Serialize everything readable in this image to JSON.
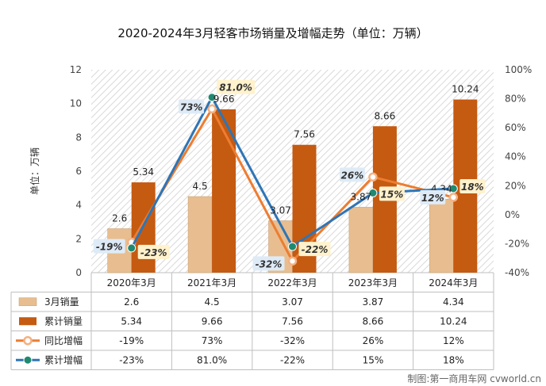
{
  "chart_data": {
    "type": "bar+line",
    "title": "2020-2024年3月轻客市场销量及增幅走势（单位：万辆）",
    "ylabel": "单位：万辆",
    "ylim": [
      0,
      12
    ],
    "y_ticks": [
      "0",
      "2",
      "4",
      "6",
      "8",
      "10",
      "12"
    ],
    "y2lim": [
      -40,
      100
    ],
    "y2_ticks": [
      "-40%",
      "-20%",
      "0%",
      "20%",
      "40%",
      "60%",
      "80%",
      "100%"
    ],
    "categories": [
      "2020年3月",
      "2021年3月",
      "2022年3月",
      "2023年3月",
      "2024年3月"
    ],
    "series": [
      {
        "name": "3月销量",
        "kind": "bar",
        "axis": "left",
        "color": "#E8BE90",
        "values": [
          2.6,
          4.5,
          3.07,
          3.87,
          4.34
        ],
        "labels": [
          "2.6",
          "4.5",
          "3.07",
          "3.87",
          "4.34"
        ]
      },
      {
        "name": "累计销量",
        "kind": "bar",
        "axis": "left",
        "color": "#C55A11",
        "values": [
          5.34,
          9.66,
          7.56,
          8.66,
          10.24
        ],
        "labels": [
          "5.34",
          "9.66",
          "7.56",
          "8.66",
          "10.24"
        ]
      },
      {
        "name": "同比增幅",
        "kind": "line",
        "axis": "right",
        "color": "#ED7D31",
        "values": [
          -19,
          73,
          -32,
          26,
          12
        ],
        "labels": [
          "-19%",
          "73%",
          "-32%",
          "26%",
          "12%"
        ]
      },
      {
        "name": "累计增幅",
        "kind": "line",
        "axis": "right",
        "color": "#2E75B6",
        "values": [
          -23,
          81.0,
          -22,
          15,
          18
        ],
        "labels": [
          "-23%",
          "81.0%",
          "-22%",
          "15%",
          "18%"
        ]
      }
    ],
    "grid": false
  },
  "footer": {
    "credit": "制图:第一商用车网 cvworld.cn"
  }
}
